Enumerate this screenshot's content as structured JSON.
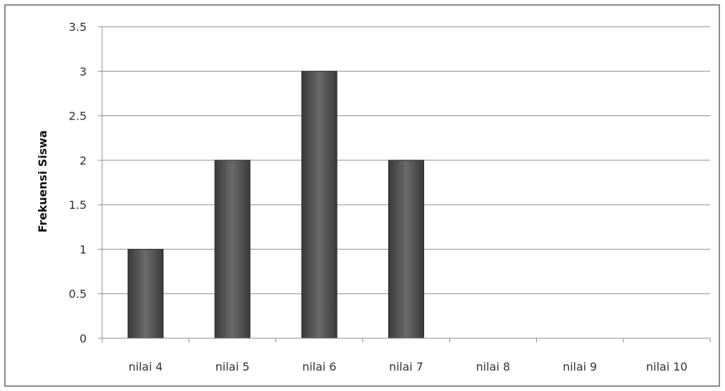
{
  "chart_data": {
    "type": "bar",
    "title": "",
    "xlabel": "",
    "ylabel": "Frekuensi Siswa",
    "categories": [
      "nilai 4",
      "nilai 5",
      "nilai 6",
      "nilai 7",
      "nilai 8",
      "nilai 9",
      "nilai 10"
    ],
    "values": [
      1,
      2,
      3,
      2,
      0,
      0,
      0
    ],
    "ylim": [
      0,
      3.5
    ],
    "yticks": [
      "0",
      "0.5",
      "1",
      "1.5",
      "2",
      "2.5",
      "3",
      "3.5"
    ],
    "grid": true,
    "legend": "none",
    "bar_color": "#555555"
  }
}
